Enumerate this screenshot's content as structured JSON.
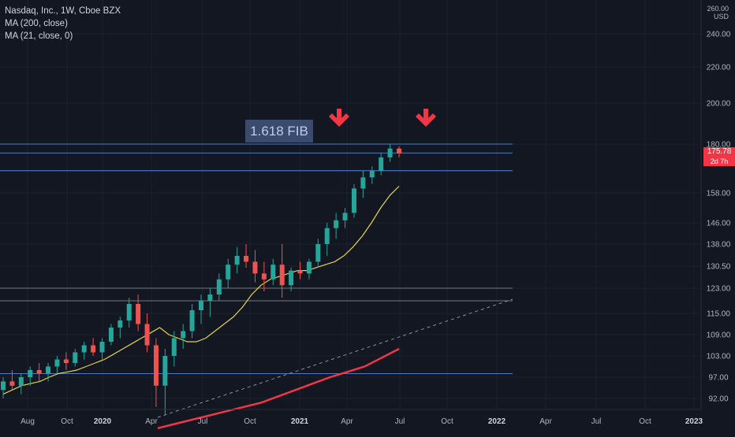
{
  "legend": {
    "symbol": "Nasdaq, Inc., 1W, Cboe BZX",
    "ma200": "MA (200, close)",
    "ma21": "MA (21, close, 0)"
  },
  "currency": {
    "top": "260.00",
    "unit": "USD"
  },
  "last_price": {
    "value": "175.78",
    "countdown": "2d 7h"
  },
  "annotation": {
    "fib_label": "1.618 FIB"
  },
  "colors": {
    "background": "#131722",
    "up": "#26a69a",
    "down": "#ef5350",
    "ma21": "#e4d34a",
    "ma200": "#f23645",
    "hline": "#5b9cf6",
    "grid": "#1f2430"
  },
  "chart_data": {
    "type": "candlestick",
    "x_ticks": [
      "Aug",
      "Oct",
      "2020",
      "Apr",
      "Jul",
      "Oct",
      "2021",
      "Apr",
      "Jul",
      "Oct",
      "2022",
      "Apr",
      "Jul",
      "Oct",
      "2023"
    ],
    "y_ticks": [
      92.0,
      97.0,
      103.0,
      109.0,
      115.0,
      123.0,
      130.5,
      138.0,
      146.0,
      158.0,
      180.0,
      200.0,
      220.0,
      240.0
    ],
    "horizontal_levels": [
      180.0,
      176.0,
      168.0,
      123.0,
      119.0,
      98.0
    ],
    "series": [
      {
        "name": "MA (21, close, 0)",
        "color": "#e4d34a",
        "values": [
          93,
          94,
          95,
          95.5,
          96,
          97,
          98,
          98.5,
          99,
          100,
          101,
          102,
          103.5,
          105,
          106.5,
          108,
          109.5,
          111,
          109,
          108,
          107,
          107,
          108,
          110,
          112,
          114,
          117,
          121,
          124,
          126,
          127,
          128,
          129,
          129,
          130,
          131,
          132,
          134,
          137,
          141,
          146,
          152,
          157,
          161
        ]
      },
      {
        "name": "MA (200, close)",
        "color": "#f23645",
        "values": [
          85,
          86,
          87,
          88,
          89,
          90,
          91,
          92.5,
          94,
          95.5,
          97,
          98.5,
          100,
          102.5,
          105
        ]
      }
    ],
    "candles": [
      [
        94,
        97,
        92,
        96
      ],
      [
        96,
        99,
        94,
        95
      ],
      [
        95,
        98,
        93,
        97
      ],
      [
        97,
        100,
        95,
        99
      ],
      [
        99,
        101,
        96,
        98
      ],
      [
        98,
        101,
        96,
        100
      ],
      [
        100,
        103,
        98,
        102
      ],
      [
        102,
        104,
        99,
        101
      ],
      [
        101,
        105,
        100,
        104
      ],
      [
        104,
        107,
        102,
        106
      ],
      [
        106,
        108,
        103,
        104
      ],
      [
        104,
        108,
        102,
        107
      ],
      [
        107,
        112,
        106,
        111
      ],
      [
        111,
        114,
        108,
        113
      ],
      [
        113,
        120,
        111,
        118
      ],
      [
        118,
        121,
        110,
        112
      ],
      [
        112,
        115,
        104,
        106
      ],
      [
        106,
        108,
        90,
        95
      ],
      [
        95,
        105,
        88,
        103
      ],
      [
        103,
        110,
        100,
        108
      ],
      [
        108,
        112,
        105,
        110
      ],
      [
        110,
        118,
        108,
        116
      ],
      [
        116,
        121,
        112,
        119
      ],
      [
        119,
        123,
        114,
        121
      ],
      [
        121,
        128,
        119,
        126
      ],
      [
        126,
        133,
        123,
        131
      ],
      [
        131,
        137,
        128,
        134
      ],
      [
        134,
        138,
        130,
        132
      ],
      [
        132,
        136,
        125,
        128
      ],
      [
        128,
        132,
        122,
        126
      ],
      [
        126,
        133,
        124,
        131
      ],
      [
        131,
        138,
        120,
        124
      ],
      [
        124,
        130,
        122,
        129
      ],
      [
        129,
        132,
        126,
        128
      ],
      [
        128,
        133,
        126,
        132
      ],
      [
        132,
        140,
        130,
        138
      ],
      [
        138,
        146,
        134,
        144
      ],
      [
        144,
        150,
        140,
        147
      ],
      [
        147,
        152,
        144,
        150
      ],
      [
        150,
        162,
        148,
        160
      ],
      [
        160,
        168,
        156,
        165
      ],
      [
        165,
        170,
        162,
        168
      ],
      [
        168,
        176,
        166,
        174
      ],
      [
        174,
        180,
        172,
        178
      ],
      [
        178,
        179,
        174,
        175.78
      ]
    ]
  }
}
